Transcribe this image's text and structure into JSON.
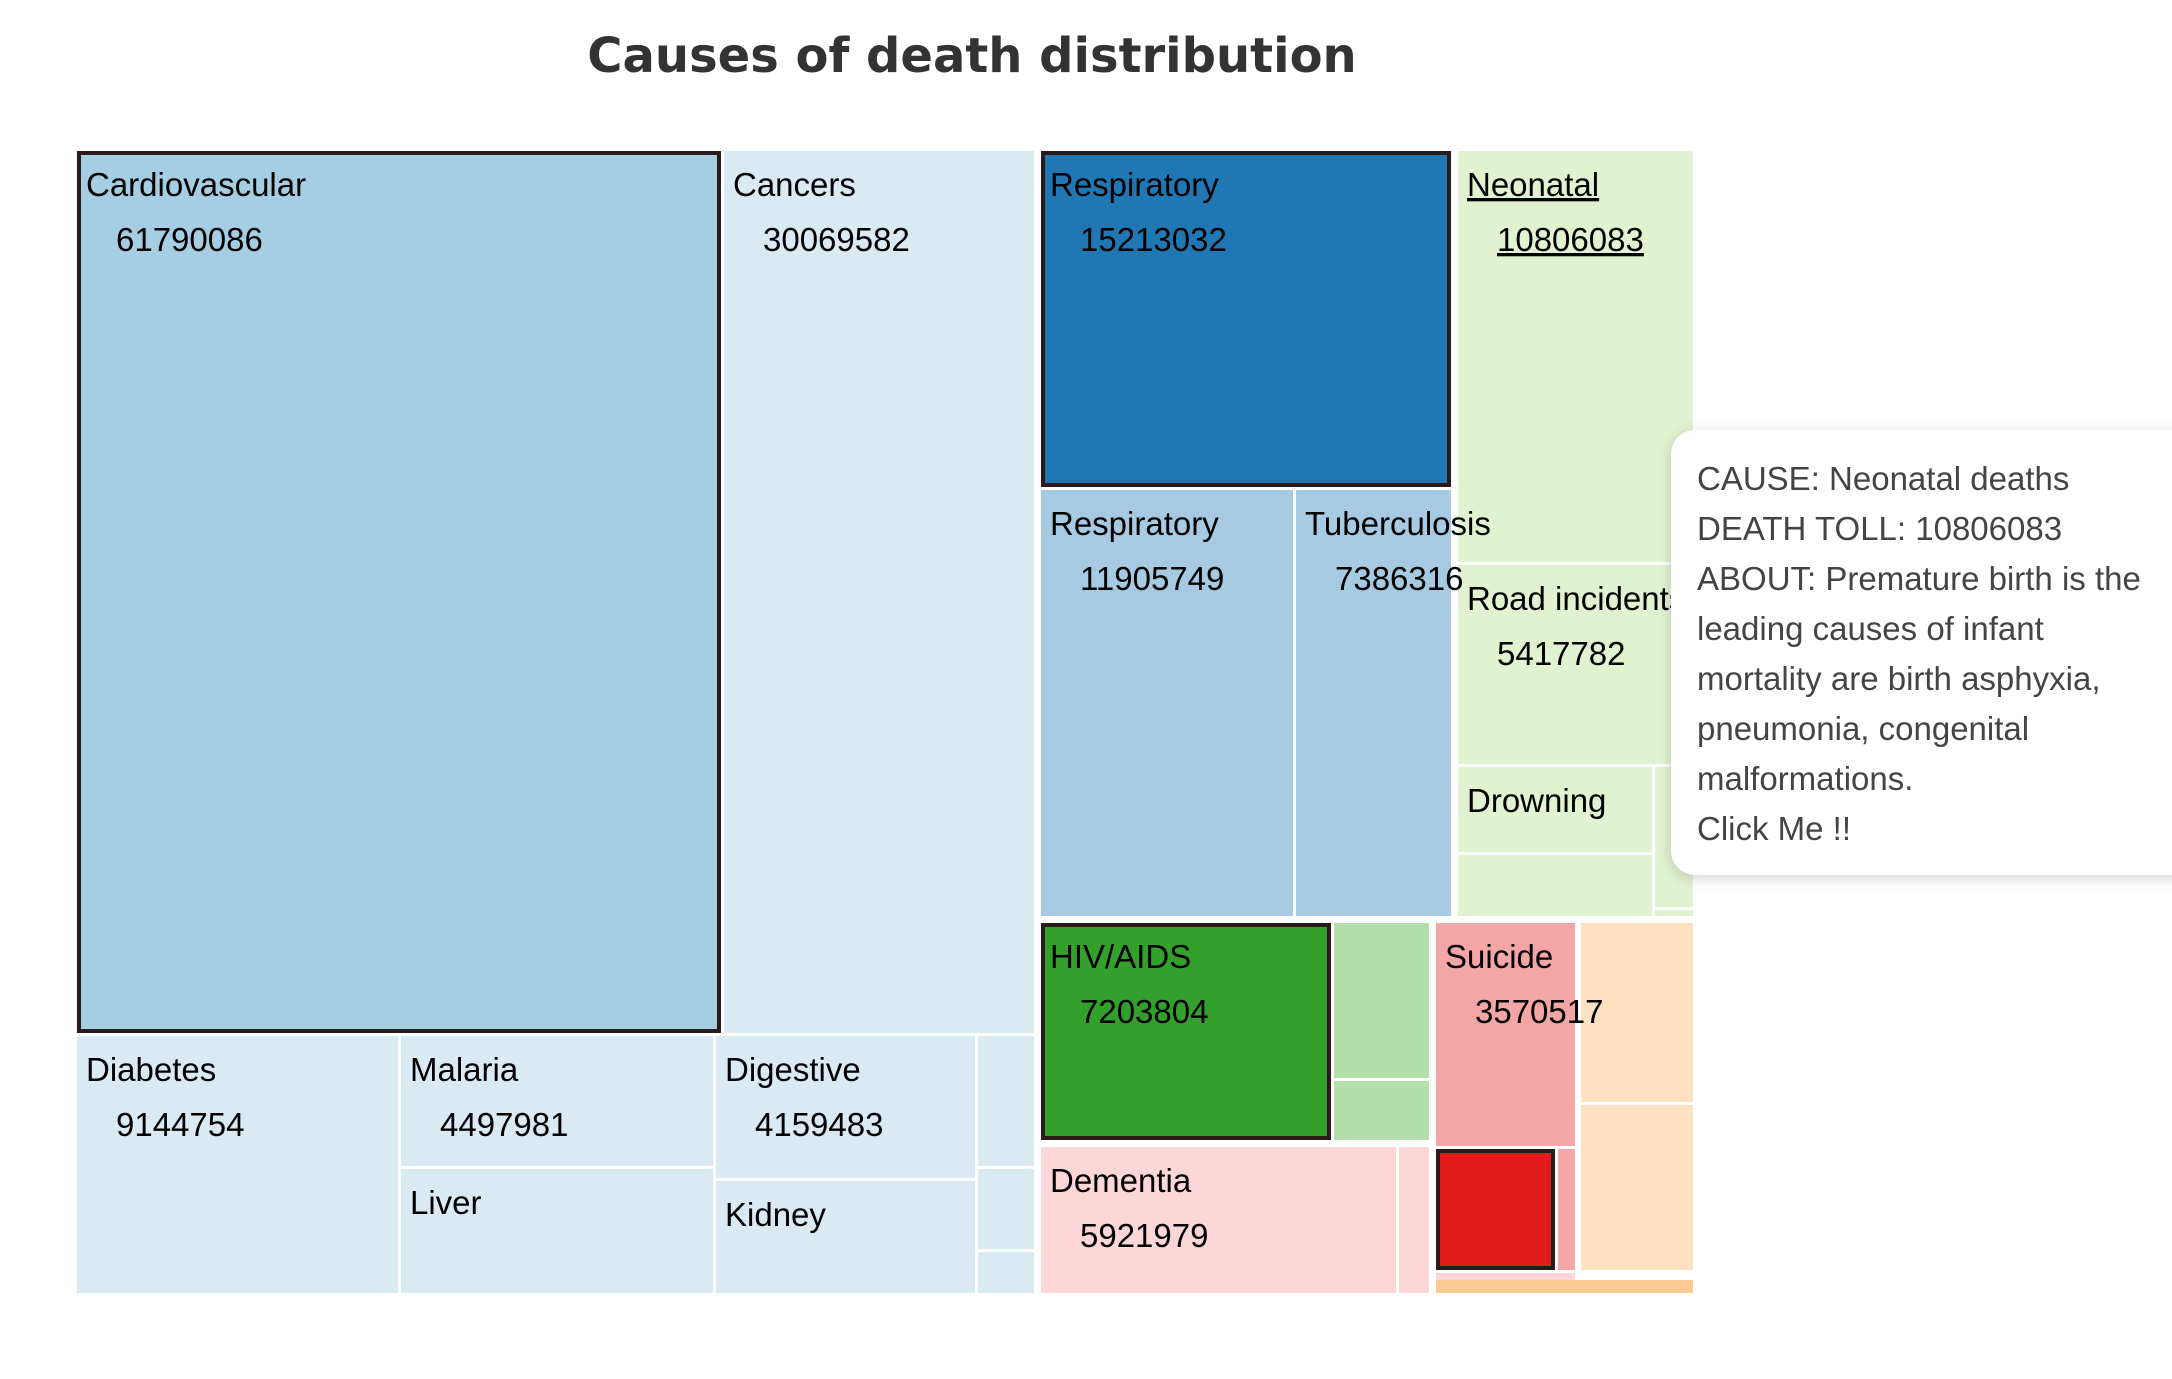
{
  "chart_data": {
    "type": "treemap",
    "title": "Causes of death distribution",
    "nodes": [
      {
        "name": "Cardiovascular",
        "label": "Cardiovascular",
        "value": 61790086,
        "color": "#a6cee3",
        "highlighted": true
      },
      {
        "name": "Cancers",
        "label": "Cancers",
        "value": 30069582,
        "color": "#daeaf3"
      },
      {
        "name": "Diabetes",
        "label": "Diabetes",
        "value": 9144754,
        "color": "#daeaf3"
      },
      {
        "name": "Malaria",
        "label": "Malaria",
        "value": 4497981,
        "color": "#daeaf3"
      },
      {
        "name": "Liver",
        "label": "Liver",
        "value": null,
        "color": "#daeaf3"
      },
      {
        "name": "Digestive",
        "label": "Digestive",
        "value": 4159483,
        "color": "#daeaf3"
      },
      {
        "name": "Kidney",
        "label": "Kidney",
        "value": null,
        "color": "#daeaf3"
      },
      {
        "name": "Respiratory-1",
        "label": "Respiratory",
        "value": 15213032,
        "color": "#1f78b4",
        "highlighted": true
      },
      {
        "name": "Respiratory-2",
        "label": "Respiratory",
        "value": 11905749,
        "color": "#a6cae2"
      },
      {
        "name": "Tuberculosis",
        "label": "Tuberculosis",
        "value": 7386316,
        "color": "#a6cae2"
      },
      {
        "name": "Neonatal",
        "label": "Neonatal",
        "value": 10806083,
        "color": "#e1f2d1",
        "hovered": true
      },
      {
        "name": "Road-incidents",
        "label": "Road incidents",
        "value": 5417782,
        "color": "#e1f2d1"
      },
      {
        "name": "Drowning",
        "label": "Drowning",
        "value": null,
        "color": "#e1f2d1"
      },
      {
        "name": "HIV-AIDS",
        "label": "HIV/AIDS",
        "value": 7203804,
        "color": "#33a02c",
        "highlighted": true
      },
      {
        "name": "Dementia",
        "label": "Dementia",
        "value": 5921979,
        "color": "#fdd7d7"
      },
      {
        "name": "Suicide",
        "label": "Suicide",
        "value": 3570517,
        "color": "#f4a6a6"
      }
    ],
    "colors": {
      "blue_dark": "#1f78b4",
      "blue_light": "#a6cee3",
      "blue_pale": "#daeaf3",
      "green_dark": "#33a02c",
      "green_light": "#b2dfaa",
      "green_pale": "#e1f2d1",
      "red_dark": "#e31a1c",
      "red_light": "#f4a6a6",
      "red_pale": "#fdd7d7",
      "orange_pale": "#fee1c0",
      "orange_light": "#fdc994",
      "highlight_border": "#2a1a1a"
    }
  },
  "tooltip": {
    "lines": [
      "CAUSE: Neonatal deaths",
      "DEATH TOLL: 10806083",
      "ABOUT: Premature birth is the",
      "leading causes of infant",
      "mortality are birth asphyxia,",
      "pneumonia, congenital",
      "malformations.",
      "Click Me !!"
    ]
  }
}
